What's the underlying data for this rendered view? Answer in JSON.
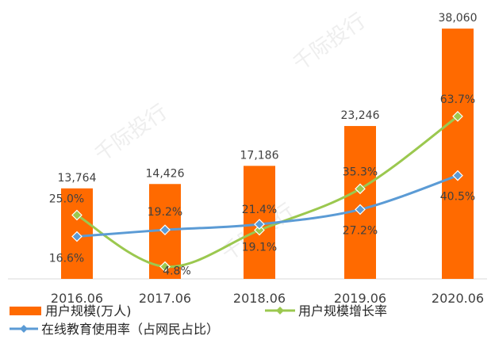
{
  "chart_data": {
    "type": "bar",
    "categories": [
      "2016.06",
      "2017.06",
      "2018.06",
      "2019.06",
      "2020.06"
    ],
    "series": [
      {
        "name": "用户规模(万人)",
        "kind": "bar",
        "axis": "left",
        "color": "#FF6A00",
        "values": [
          13764,
          14426,
          17186,
          23246,
          38060
        ],
        "labels": [
          "13,764",
          "14,426",
          "17,186",
          "23,246",
          "38,060"
        ]
      },
      {
        "name": "用户规模增长率",
        "kind": "line",
        "axis": "right",
        "color": "#9BC84F",
        "marker": "diamond",
        "values": [
          25.0,
          4.8,
          19.1,
          35.3,
          63.7
        ],
        "labels": [
          "25.0%",
          "4.8%",
          "19.1%",
          "35.3%",
          "63.7%"
        ]
      },
      {
        "name": "在线教育使用率（占网民占比）",
        "kind": "line",
        "axis": "right",
        "color": "#5B9BD5",
        "marker": "diamond",
        "values": [
          16.6,
          19.2,
          21.4,
          27.2,
          40.5
        ],
        "labels": [
          "16.6%",
          "19.2%",
          "21.4%",
          "27.2%",
          "40.5%"
        ]
      }
    ],
    "ylim_left": [
      0,
      40000
    ],
    "ylim_right": [
      0,
      100
    ],
    "grid": false,
    "legend": "bottom-left",
    "label_color": "#404040"
  },
  "watermark": "千际投行"
}
